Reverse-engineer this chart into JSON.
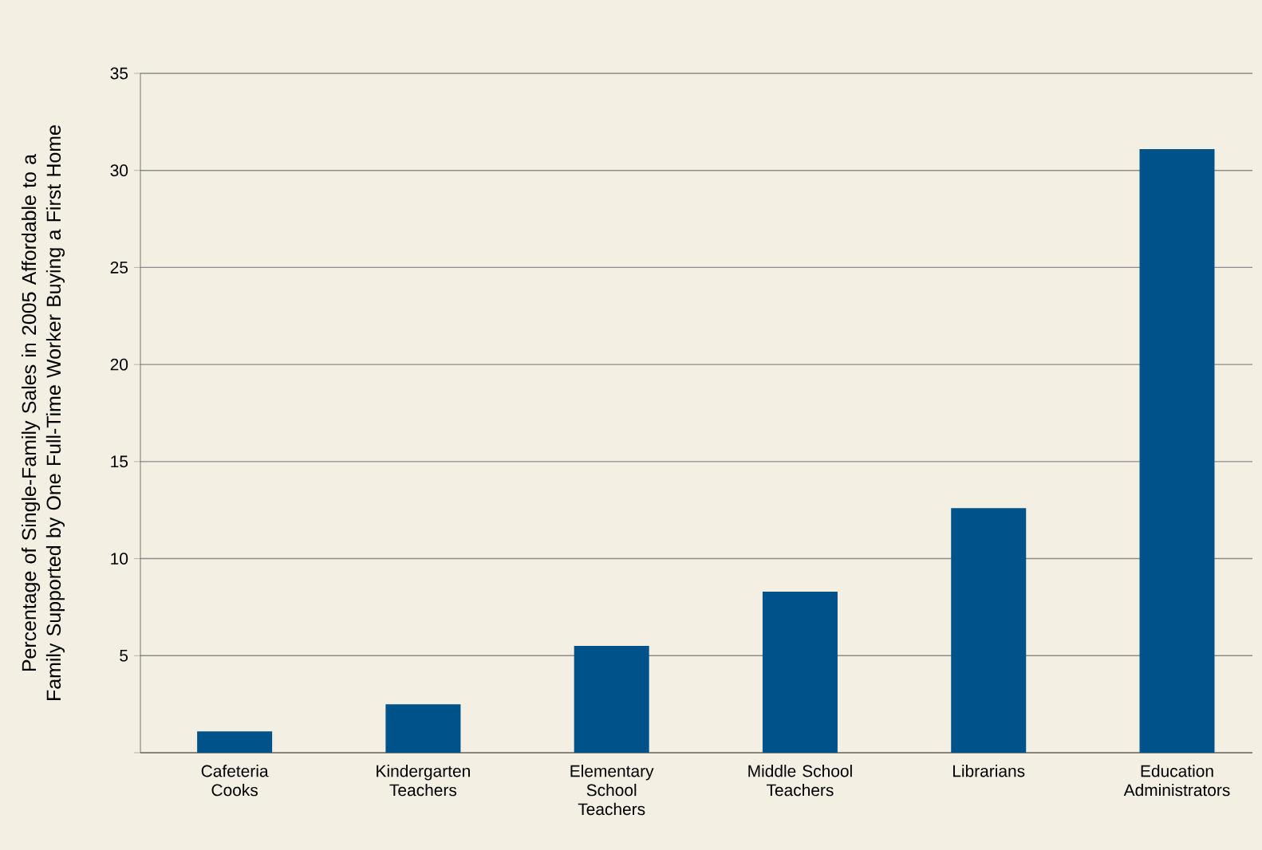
{
  "chart_data": {
    "type": "bar",
    "ylabel": "Percentage of Single-Family Sales in 2005 Affordable to a Family Supported by One Full-Time Worker Buying a First Home",
    "categories": [
      "Cafeteria Cooks",
      "Kindergarten Teachers",
      "Elementary School Teachers",
      "Middle School Teachers",
      "Librarians",
      "Education Administrators"
    ],
    "values": [
      1.1,
      2.5,
      5.5,
      8.3,
      12.6,
      31.1
    ],
    "color": "#00528a",
    "ylim": [
      0,
      35
    ],
    "yticks": [
      {
        "value": 0,
        "label": null
      },
      5,
      10,
      15,
      20,
      25,
      30,
      35
    ],
    "grid": "y"
  }
}
